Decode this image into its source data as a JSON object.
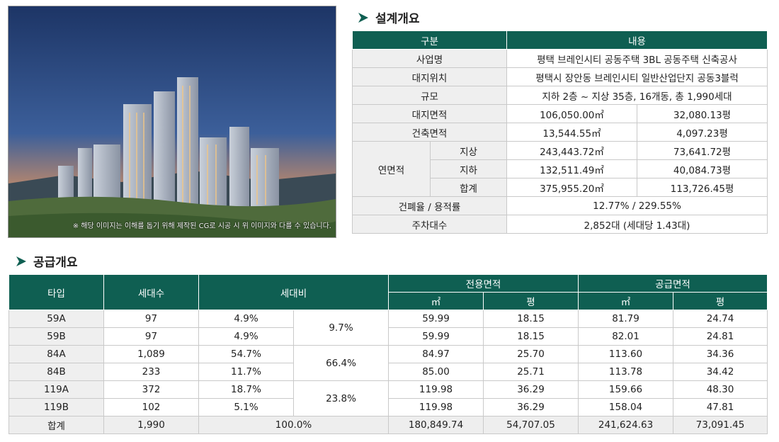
{
  "render_image": {
    "caption": "※ 해당 이미지는 이해를 돕기 위해 제작된 CG로 시공 시 위 이미지와 다를 수 있습니다."
  },
  "design_section": {
    "title": "설계개요",
    "header": {
      "col1": "구분",
      "col2": "내용"
    },
    "rows": {
      "project": {
        "label": "사업명",
        "value": "평택 브레인시티 공동주택 3BL 공동주택 신축공사"
      },
      "location": {
        "label": "대지위치",
        "value": "평택시 장안동 브레인시티 일반산업단지 공동3블럭"
      },
      "scale": {
        "label": "규모",
        "value": "지하 2층 ~ 지상 35층, 16개동, 총 1,990세대"
      },
      "site_area": {
        "label": "대지면적",
        "m2": "106,050.00㎡",
        "pyeong": "32,080.13평"
      },
      "building_area": {
        "label": "건축면적",
        "m2": "13,544.55㎡",
        "pyeong": "4,097.23평"
      },
      "gross_area": {
        "label": "연면적",
        "above": {
          "label": "지상",
          "m2": "243,443.72㎡",
          "pyeong": "73,641.72평"
        },
        "below": {
          "label": "지하",
          "m2": "132,511.49㎡",
          "pyeong": "40,084.73평"
        },
        "total": {
          "label": "합계",
          "m2": "375,955.20㎡",
          "pyeong": "113,726.45평"
        }
      },
      "ratio": {
        "label": "건폐율 / 용적률",
        "value": "12.77% / 229.55%"
      },
      "parking": {
        "label": "주차대수",
        "value": "2,852대 (세대당 1.43대)"
      }
    }
  },
  "supply_section": {
    "title": "공급개요",
    "headers": {
      "type": "타입",
      "households": "세대수",
      "ratio": "세대비",
      "exclusive": "전용면적",
      "supply": "공급면적",
      "m2": "㎡",
      "pyeong": "평"
    },
    "rows": [
      {
        "type": "59A",
        "households": "97",
        "ratio": "4.9%",
        "ex_m2": "59.99",
        "ex_py": "18.15",
        "sup_m2": "81.79",
        "sup_py": "24.74"
      },
      {
        "type": "59B",
        "households": "97",
        "ratio": "4.9%",
        "ex_m2": "59.99",
        "ex_py": "18.15",
        "sup_m2": "82.01",
        "sup_py": "24.81"
      },
      {
        "type": "84A",
        "households": "1,089",
        "ratio": "54.7%",
        "ex_m2": "84.97",
        "ex_py": "25.70",
        "sup_m2": "113.60",
        "sup_py": "34.36"
      },
      {
        "type": "84B",
        "households": "233",
        "ratio": "11.7%",
        "ex_m2": "85.00",
        "ex_py": "25.71",
        "sup_m2": "113.78",
        "sup_py": "34.42"
      },
      {
        "type": "119A",
        "households": "372",
        "ratio": "18.7%",
        "ex_m2": "119.98",
        "ex_py": "36.29",
        "sup_m2": "159.66",
        "sup_py": "48.30"
      },
      {
        "type": "119B",
        "households": "102",
        "ratio": "5.1%",
        "ex_m2": "119.98",
        "ex_py": "36.29",
        "sup_m2": "158.04",
        "sup_py": "47.81"
      }
    ],
    "group_ratios": [
      "9.7%",
      "66.4%",
      "23.8%"
    ],
    "total": {
      "label": "합계",
      "households": "1,990",
      "ratio": "100.0%",
      "ex_m2": "180,849.74",
      "ex_py": "54,707.05",
      "sup_m2": "241,624.63",
      "sup_py": "73,091.45"
    }
  },
  "colors": {
    "header_green": "#0f5f52",
    "label_gray": "#efefef"
  }
}
